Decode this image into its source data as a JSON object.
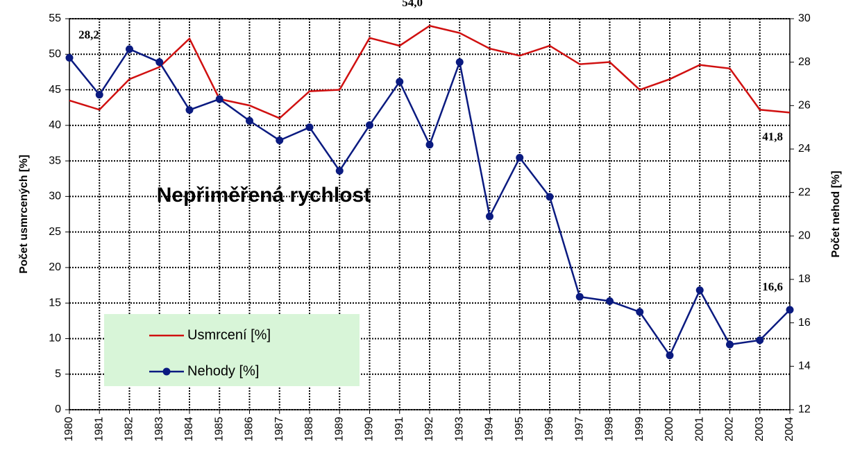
{
  "chart_data": {
    "type": "line",
    "title": "Nepřiměřená rychlost",
    "y_label": "Počet usmrcených  [%]",
    "y2_label": "Počet nehod  [%]",
    "categories": [
      "1980",
      "1981",
      "1982",
      "1983",
      "1984",
      "1985",
      "1986",
      "1987",
      "1988",
      "1989",
      "1990",
      "1991",
      "1992",
      "1993",
      "1994",
      "1995",
      "1996",
      "1997",
      "1998",
      "1999",
      "2000",
      "2001",
      "2002",
      "2003",
      "2004"
    ],
    "series": [
      {
        "name": "Usmrcení  [%]",
        "color": "#d01010",
        "axis": "y",
        "marker": false,
        "values": [
          43.5,
          42.2,
          46.5,
          48.2,
          52.2,
          43.7,
          42.8,
          41.0,
          44.8,
          45.0,
          52.3,
          51.2,
          54.0,
          53.0,
          50.8,
          49.8,
          51.2,
          48.6,
          48.9,
          45.0,
          46.5,
          48.5,
          48.0,
          42.2,
          41.8
        ],
        "value_labels": [
          null,
          null,
          null,
          null,
          null,
          null,
          null,
          null,
          null,
          null,
          null,
          null,
          "54,0",
          null,
          null,
          null,
          null,
          null,
          null,
          null,
          null,
          null,
          null,
          null,
          "41,8"
        ]
      },
      {
        "name": "Nehody [%]",
        "color": "#0a1a80",
        "axis": "y2",
        "marker": true,
        "values": [
          28.2,
          26.5,
          28.6,
          28.0,
          25.8,
          26.3,
          25.3,
          24.4,
          25.0,
          23.0,
          25.1,
          27.1,
          24.2,
          28.0,
          20.9,
          23.6,
          21.8,
          17.2,
          17.0,
          16.5,
          14.5,
          17.5,
          15.0,
          15.2,
          16.6
        ],
        "value_labels": [
          "28,2",
          null,
          null,
          null,
          null,
          null,
          null,
          null,
          null,
          null,
          null,
          null,
          null,
          null,
          null,
          null,
          null,
          null,
          null,
          null,
          null,
          null,
          null,
          null,
          "16,6"
        ]
      }
    ],
    "ylim": [
      0,
      55
    ],
    "yticks": [
      0,
      5,
      10,
      15,
      20,
      25,
      30,
      35,
      40,
      45,
      50,
      55
    ],
    "y2lim": [
      12,
      30
    ],
    "y2ticks": [
      12,
      14,
      16,
      18,
      20,
      22,
      24,
      26,
      28,
      30
    ],
    "grid": true,
    "legend": "lower-left",
    "legend_color": "#d8f5d8"
  }
}
